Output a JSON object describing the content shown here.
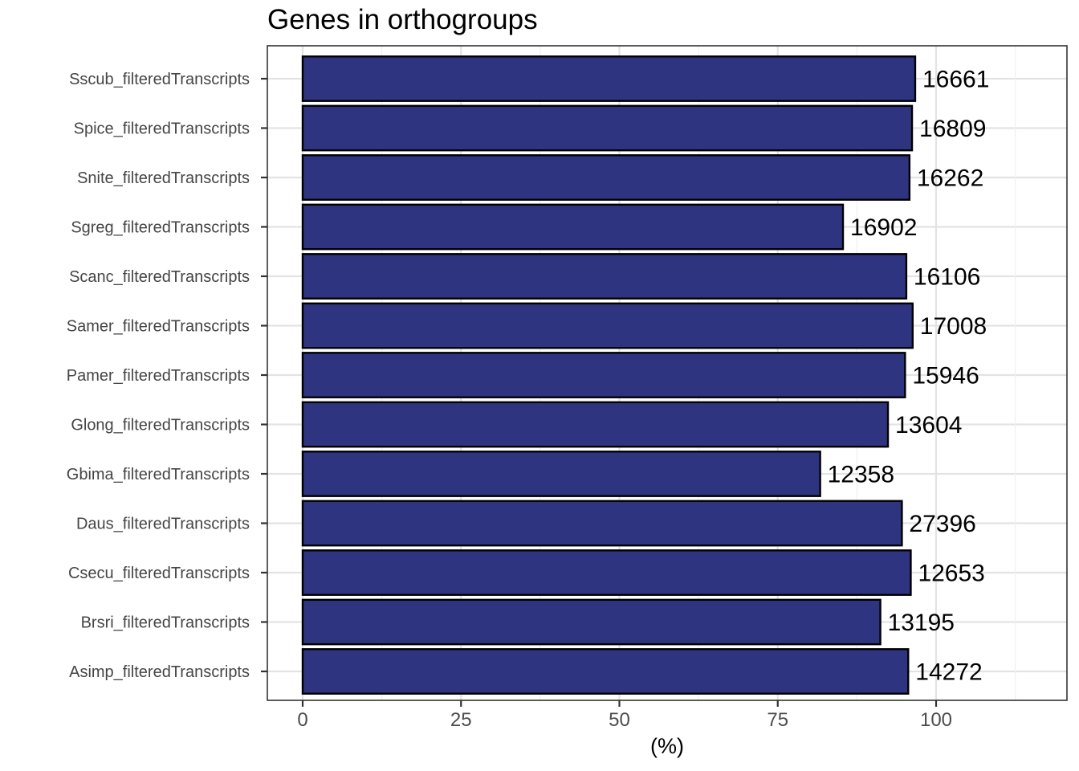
{
  "chart_data": {
    "type": "bar",
    "orientation": "horizontal",
    "title": "Genes in orthogroups",
    "xlabel": "(%)",
    "ylabel": "",
    "x_ticks": [
      0,
      25,
      50,
      75,
      100
    ],
    "x_minor_ticks": [
      12.5,
      37.5,
      62.5,
      87.5,
      112.5
    ],
    "xlim": [
      -5.6,
      120.7
    ],
    "grid": true,
    "legend": false,
    "colors": {
      "bar_fill": "#2e3480",
      "bar_stroke": "#000000",
      "grid_major": "#e3e3e3",
      "grid_minor": "#f0f0f0",
      "panel_border": "#333333",
      "axis_text": "#4d4d4d",
      "y_axis_text": "#454545",
      "tick_mark": "#333333",
      "title_text": "#000000",
      "value_text": "#000000",
      "background": "#ffffff"
    },
    "rows": [
      {
        "category": "Sscub_filteredTranscripts",
        "percent": 96.7,
        "count": "16661"
      },
      {
        "category": "Spice_filteredTranscripts",
        "percent": 96.2,
        "count": "16809"
      },
      {
        "category": "Snite_filteredTranscripts",
        "percent": 95.8,
        "count": "16262"
      },
      {
        "category": "Sgreg_filteredTranscripts",
        "percent": 85.3,
        "count": "16902"
      },
      {
        "category": "Scanc_filteredTranscripts",
        "percent": 95.3,
        "count": "16106"
      },
      {
        "category": "Samer_filteredTranscripts",
        "percent": 96.3,
        "count": "17008"
      },
      {
        "category": "Pamer_filteredTranscripts",
        "percent": 95.1,
        "count": "15946"
      },
      {
        "category": "Glong_filteredTranscripts",
        "percent": 92.4,
        "count": "13604"
      },
      {
        "category": "Gbima_filteredTranscripts",
        "percent": 81.7,
        "count": "12358"
      },
      {
        "category": "Daus_filteredTranscripts",
        "percent": 94.6,
        "count": "27396"
      },
      {
        "category": "Csecu_filteredTranscripts",
        "percent": 96.0,
        "count": "12653"
      },
      {
        "category": "Brsri_filteredTranscripts",
        "percent": 91.2,
        "count": "13195"
      },
      {
        "category": "Asimp_filteredTranscripts",
        "percent": 95.6,
        "count": "14272"
      }
    ]
  }
}
